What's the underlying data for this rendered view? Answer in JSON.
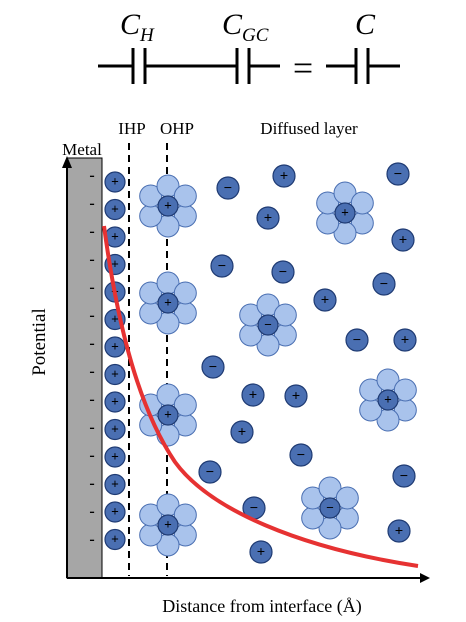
{
  "circuit": {
    "cap1_label": "C",
    "cap1_sub": "H",
    "cap2_label": "C",
    "cap2_sub": "GC",
    "equals": "=",
    "cap3_label": "C"
  },
  "labels": {
    "ihp": "IHP",
    "ohp": "OHP",
    "diffused": "Diffused layer",
    "metal": "Metal",
    "y_axis": "Potential",
    "x_axis": "Distance from interface (Å)"
  },
  "colors": {
    "ion_fill": "#4a6fb2",
    "ion_stroke": "#1f3b73",
    "water_fill": "#a9c3ec",
    "water_stroke": "#4a6fb2",
    "metal": "#a6a6a6",
    "curve": "#e63232"
  },
  "symbols": {
    "plus": "+",
    "minus": "−",
    "metal_charge": "-"
  }
}
